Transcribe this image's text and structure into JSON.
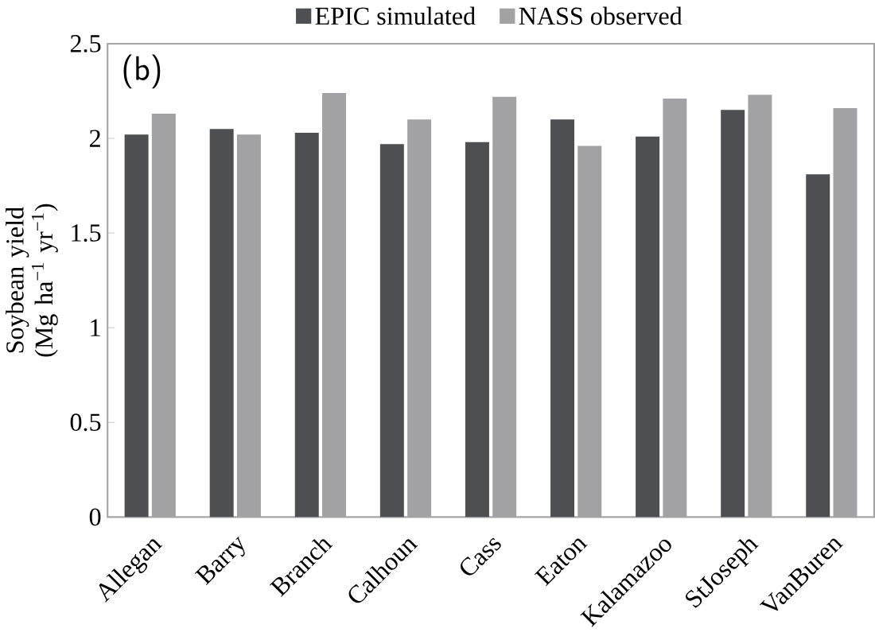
{
  "chart_data": {
    "type": "bar",
    "ylabel": "Soybean yield (Mg ha$^{−1}$ yr$^{−1}$)",
    "annotations": [
      "(b)"
    ],
    "categories": [
      "Allegan",
      "Barry",
      "Branch",
      "Calhoun",
      "Cass",
      "Eaton",
      "Kalamazoo",
      "StJoseph",
      "VanBuren"
    ],
    "series": [
      {
        "name": "EPIC simulated",
        "color": "#4e4f52",
        "values": [
          2.02,
          2.05,
          2.03,
          1.97,
          1.98,
          2.1,
          2.01,
          2.15,
          1.81
        ]
      },
      {
        "name": "NASS observed",
        "color": "#a2a2a5",
        "values": [
          2.13,
          2.02,
          2.24,
          2.1,
          2.22,
          1.96,
          2.21,
          2.23,
          2.16
        ]
      }
    ],
    "ylim": [
      0,
      2.5
    ],
    "yticks": [
      0,
      0.5,
      1,
      1.5,
      2,
      2.5
    ],
    "legend": "top",
    "grid": false
  }
}
